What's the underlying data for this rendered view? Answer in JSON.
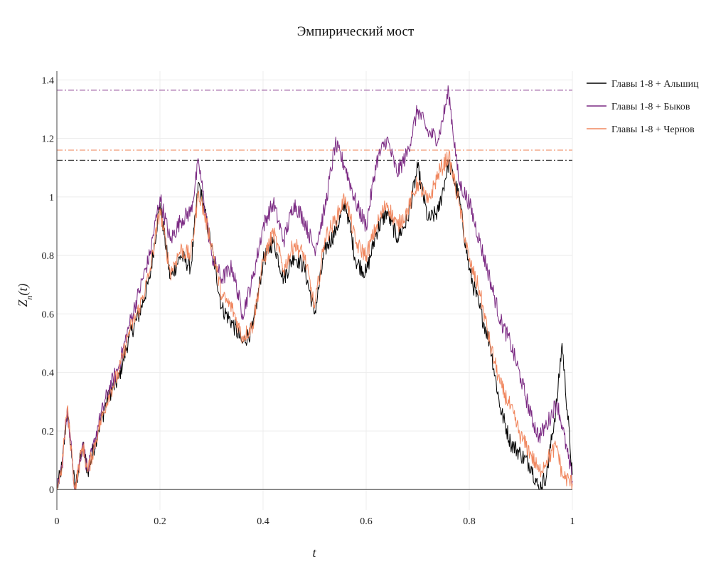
{
  "chart_data": {
    "type": "line",
    "title": "Эмпирический мост",
    "xlabel": "t",
    "ylabel": "Z_n(t)",
    "xlim": [
      0,
      1
    ],
    "ylim": [
      -0.07,
      1.43
    ],
    "xticks": [
      0,
      0.2,
      0.4,
      0.6,
      0.8,
      1
    ],
    "xtick_labels": [
      "0",
      "0.2",
      "0.4",
      "0.6",
      "0.8",
      "1"
    ],
    "yticks": [
      0,
      0.2,
      0.4,
      0.6,
      0.8,
      1,
      1.2,
      1.4
    ],
    "ytick_labels": [
      "0",
      "0.2",
      "0.4",
      "0.6",
      "0.8",
      "1",
      "1.2",
      "1.4"
    ],
    "grid": true,
    "legend_position": "top-right",
    "series": [
      {
        "name": "Главы 1-8 + Альшиц",
        "color": "#000000",
        "max_line": 1.125,
        "x": [
          0,
          0.01,
          0.02,
          0.03,
          0.035,
          0.05,
          0.06,
          0.08,
          0.1,
          0.12,
          0.14,
          0.16,
          0.18,
          0.2,
          0.22,
          0.24,
          0.26,
          0.275,
          0.3,
          0.32,
          0.34,
          0.36,
          0.38,
          0.4,
          0.42,
          0.44,
          0.46,
          0.48,
          0.5,
          0.52,
          0.54,
          0.56,
          0.58,
          0.6,
          0.62,
          0.64,
          0.66,
          0.68,
          0.7,
          0.72,
          0.74,
          0.76,
          0.78,
          0.8,
          0.82,
          0.84,
          0.86,
          0.88,
          0.9,
          0.92,
          0.935,
          0.95,
          0.97,
          0.98,
          1
        ],
        "y": [
          0,
          0.08,
          0.27,
          0.1,
          0.0,
          0.15,
          0.06,
          0.2,
          0.32,
          0.38,
          0.52,
          0.6,
          0.72,
          0.98,
          0.72,
          0.8,
          0.76,
          1.05,
          0.83,
          0.62,
          0.57,
          0.5,
          0.55,
          0.78,
          0.85,
          0.72,
          0.8,
          0.76,
          0.6,
          0.82,
          0.88,
          0.98,
          0.78,
          0.74,
          0.88,
          0.95,
          0.86,
          0.92,
          1.1,
          0.92,
          0.95,
          1.12,
          1.0,
          0.75,
          0.62,
          0.5,
          0.28,
          0.16,
          0.12,
          0.08,
          0.0,
          0.05,
          0.3,
          0.5,
          0.05
        ]
      },
      {
        "name": "Главы 1-8 + Быков",
        "color": "#7b2a83",
        "max_line": 1.365,
        "x": [
          0,
          0.01,
          0.02,
          0.03,
          0.035,
          0.05,
          0.06,
          0.08,
          0.1,
          0.12,
          0.14,
          0.16,
          0.18,
          0.2,
          0.22,
          0.24,
          0.26,
          0.275,
          0.3,
          0.32,
          0.34,
          0.36,
          0.38,
          0.4,
          0.42,
          0.44,
          0.46,
          0.48,
          0.5,
          0.52,
          0.54,
          0.56,
          0.58,
          0.6,
          0.62,
          0.64,
          0.66,
          0.68,
          0.7,
          0.72,
          0.74,
          0.76,
          0.78,
          0.8,
          0.82,
          0.84,
          0.86,
          0.88,
          0.9,
          0.92,
          0.935,
          0.95,
          0.97,
          0.98,
          1
        ],
        "y": [
          0,
          0.08,
          0.28,
          0.1,
          0.0,
          0.16,
          0.06,
          0.22,
          0.34,
          0.42,
          0.56,
          0.68,
          0.8,
          1.0,
          0.85,
          0.92,
          0.95,
          1.12,
          0.8,
          0.72,
          0.76,
          0.6,
          0.72,
          0.9,
          0.98,
          0.85,
          0.98,
          0.92,
          0.82,
          0.96,
          1.18,
          1.1,
          0.98,
          0.9,
          1.12,
          1.2,
          1.08,
          1.15,
          1.3,
          1.22,
          1.2,
          1.36,
          1.05,
          0.98,
          0.85,
          0.72,
          0.58,
          0.5,
          0.38,
          0.25,
          0.18,
          0.22,
          0.3,
          0.22,
          0.03
        ]
      },
      {
        "name": "Главы 1-8 + Чернов",
        "color": "#f0875f",
        "max_line": 1.16,
        "x": [
          0,
          0.01,
          0.02,
          0.03,
          0.035,
          0.05,
          0.06,
          0.08,
          0.1,
          0.12,
          0.14,
          0.16,
          0.18,
          0.2,
          0.22,
          0.24,
          0.26,
          0.275,
          0.3,
          0.32,
          0.34,
          0.36,
          0.38,
          0.4,
          0.42,
          0.44,
          0.46,
          0.48,
          0.5,
          0.52,
          0.54,
          0.56,
          0.58,
          0.6,
          0.62,
          0.64,
          0.66,
          0.68,
          0.7,
          0.72,
          0.74,
          0.76,
          0.78,
          0.8,
          0.82,
          0.84,
          0.86,
          0.88,
          0.9,
          0.92,
          0.935,
          0.95,
          0.97,
          0.98,
          1
        ],
        "y": [
          0,
          0.08,
          0.28,
          0.1,
          0.0,
          0.15,
          0.06,
          0.2,
          0.32,
          0.4,
          0.54,
          0.62,
          0.74,
          0.96,
          0.74,
          0.82,
          0.8,
          1.02,
          0.84,
          0.66,
          0.62,
          0.52,
          0.56,
          0.78,
          0.88,
          0.75,
          0.84,
          0.8,
          0.62,
          0.86,
          0.92,
          1.0,
          0.84,
          0.8,
          0.9,
          0.98,
          0.9,
          0.95,
          1.05,
          0.98,
          1.08,
          1.14,
          0.98,
          0.78,
          0.68,
          0.5,
          0.36,
          0.28,
          0.18,
          0.12,
          0.06,
          0.1,
          0.15,
          0.05,
          0.02
        ]
      }
    ]
  }
}
